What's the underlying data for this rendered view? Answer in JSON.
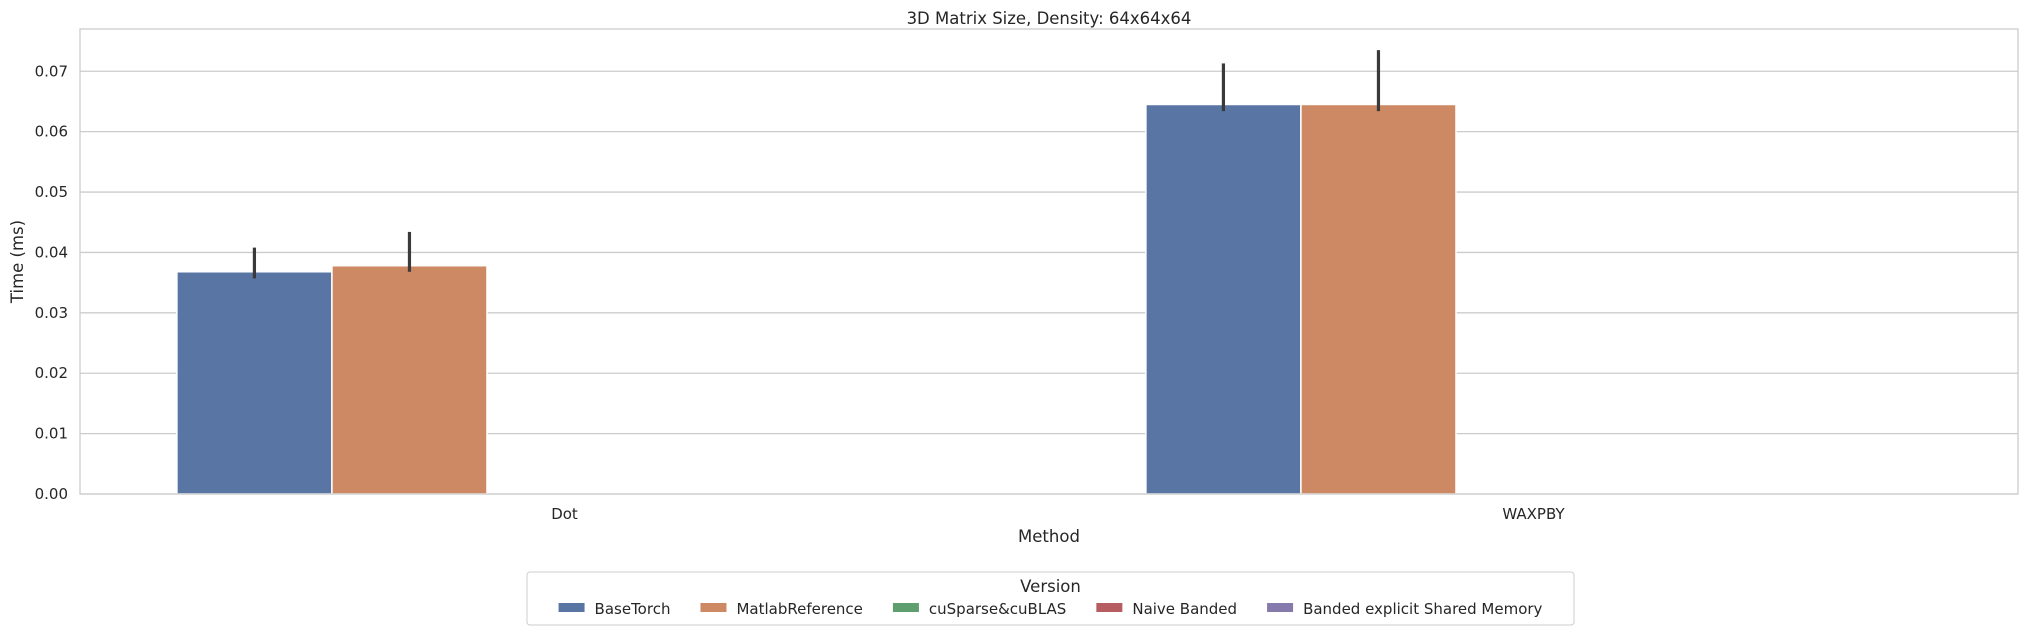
{
  "chart_data": {
    "type": "bar",
    "title": "3D Matrix Size, Density: 64x64x64",
    "xlabel": "Method",
    "ylabel": "Time (ms)",
    "categories": [
      "Dot",
      "WAXPBY"
    ],
    "ylim": [
      0,
      0.077
    ],
    "yticks": [
      0.0,
      0.01,
      0.02,
      0.03,
      0.04,
      0.05,
      0.06,
      0.07
    ],
    "ytick_labels": [
      "0.00",
      "0.01",
      "0.02",
      "0.03",
      "0.04",
      "0.05",
      "0.06",
      "0.07"
    ],
    "grid": "horizontal",
    "legend_title": "Version",
    "legend_position": "bottom-center",
    "series": [
      {
        "name": "BaseTorch",
        "color": "#5875a4",
        "values": [
          0.0368,
          0.0645
        ],
        "err_low": [
          0.0357,
          0.0634
        ],
        "err_high": [
          0.0408,
          0.0713
        ]
      },
      {
        "name": "MatlabReference",
        "color": "#cc8963",
        "values": [
          0.0378,
          0.0645
        ],
        "err_low": [
          0.0368,
          0.0634
        ],
        "err_high": [
          0.0434,
          0.0735
        ]
      },
      {
        "name": "cuSparse&cuBLAS",
        "color": "#5f9e6e",
        "values": [
          null,
          null
        ]
      },
      {
        "name": "Naive Banded",
        "color": "#b55d60",
        "values": [
          null,
          null
        ]
      },
      {
        "name": "Banded explicit Shared Memory",
        "color": "#857aab",
        "values": [
          null,
          null
        ]
      }
    ]
  }
}
